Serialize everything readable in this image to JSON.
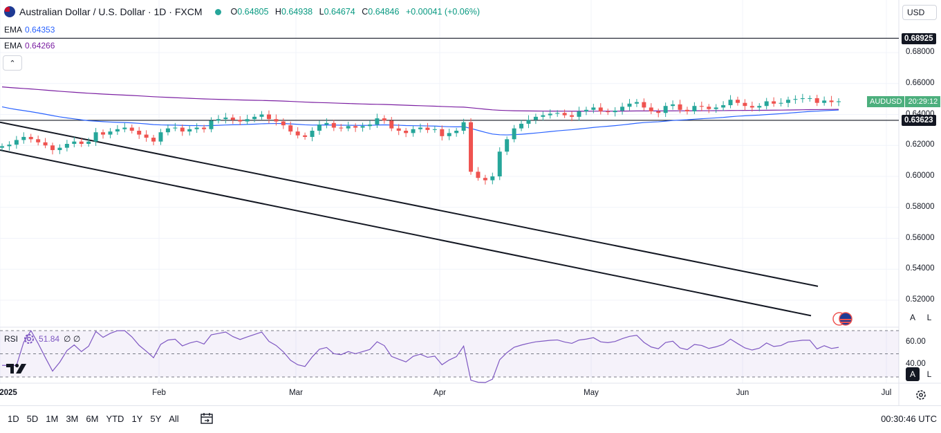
{
  "header": {
    "symbol": "Australian Dollar / U.S. Dollar · 1D · FXCM",
    "open_label": "O",
    "open": "0.64805",
    "high_label": "H",
    "high": "0.64938",
    "low_label": "L",
    "low": "0.64674",
    "close_label": "C",
    "close": "0.64846",
    "change": "+0.00041 (+0.06%)"
  },
  "indicators": [
    {
      "name": "EMA",
      "value": "0.64353",
      "color": "#2962ff"
    },
    {
      "name": "EMA",
      "value": "0.64266",
      "color": "#7b1fa2"
    }
  ],
  "currency_button": "USD",
  "price_axis": [
    "0.68000",
    "0.66000",
    "0.64000",
    "0.62000",
    "0.60000",
    "0.58000",
    "0.56000",
    "0.54000",
    "0.52000"
  ],
  "horizontal_lines": {
    "upper": "0.68925",
    "lower": "0.63623"
  },
  "current_price_tag": {
    "symbol": "AUDUSD",
    "countdown": "20:29:12"
  },
  "scale_buttons": {
    "auto": "A",
    "log": "L"
  },
  "rsi": {
    "label": "RSI",
    "value": "51.84",
    "extra": "∅ ∅",
    "axis": [
      "60.00",
      "40.00"
    ]
  },
  "time_axis": [
    "2025",
    "Feb",
    "Mar",
    "Apr",
    "May",
    "Jun",
    "Jul"
  ],
  "range_buttons": [
    "1D",
    "5D",
    "1M",
    "3M",
    "6M",
    "YTD",
    "1Y",
    "5Y",
    "All"
  ],
  "clock": "00:30:46 UTC",
  "colors": {
    "up": "#26a69a",
    "down": "#ef5350",
    "ema_fast": "#2962ff",
    "ema_slow": "#7b1fa2",
    "rsi": "#7e57c2"
  },
  "chart_data": {
    "type": "candlestick",
    "title": "Australian Dollar / U.S. Dollar · 1D · FXCM",
    "x_ticks": [
      "2025",
      "Feb",
      "Mar",
      "Apr",
      "May",
      "Jun",
      "Jul"
    ],
    "y_range": [
      0.51,
      0.69
    ],
    "series": [
      {
        "name": "AUDUSD",
        "closes": [
          0.6195,
          0.6205,
          0.6235,
          0.6255,
          0.624,
          0.622,
          0.62,
          0.617,
          0.6185,
          0.621,
          0.6225,
          0.621,
          0.6225,
          0.6285,
          0.627,
          0.629,
          0.6305,
          0.6315,
          0.6295,
          0.627,
          0.625,
          0.6225,
          0.6285,
          0.631,
          0.6315,
          0.629,
          0.6305,
          0.6315,
          0.6305,
          0.636,
          0.637,
          0.638,
          0.6365,
          0.6355,
          0.637,
          0.6385,
          0.64,
          0.637,
          0.6355,
          0.633,
          0.629,
          0.6265,
          0.6255,
          0.6295,
          0.6335,
          0.6345,
          0.6315,
          0.631,
          0.6325,
          0.6315,
          0.6325,
          0.6335,
          0.6375,
          0.636,
          0.631,
          0.6295,
          0.628,
          0.6305,
          0.6315,
          0.63,
          0.6305,
          0.626,
          0.628,
          0.6295,
          0.635,
          0.603,
          0.599,
          0.5975,
          0.6,
          0.616,
          0.624,
          0.631,
          0.634,
          0.6365,
          0.6385,
          0.6395,
          0.6405,
          0.641,
          0.6395,
          0.6385,
          0.642,
          0.643,
          0.6445,
          0.642,
          0.6415,
          0.6425,
          0.645,
          0.647,
          0.648,
          0.6445,
          0.642,
          0.641,
          0.6455,
          0.6465,
          0.643,
          0.642,
          0.6455,
          0.645,
          0.6435,
          0.6445,
          0.646,
          0.6495,
          0.6475,
          0.6455,
          0.6445,
          0.6455,
          0.6485,
          0.647,
          0.6475,
          0.6495,
          0.65,
          0.6505,
          0.6505,
          0.6475,
          0.649,
          0.648,
          0.6485
        ]
      },
      {
        "name": "EMA",
        "values_start": 0.646,
        "values_end": 0.6435
      },
      {
        "name": "EMA",
        "values_start": 0.6582,
        "values_end": 0.6427
      }
    ],
    "horizontal_levels": [
      0.68925,
      0.63623
    ],
    "trendlines": [
      {
        "from": [
          "2025",
          0.635
        ],
        "to": [
          "Jul",
          0.529
        ]
      },
      {
        "from": [
          "2025",
          0.617
        ],
        "to": [
          "Jul",
          0.51
        ]
      }
    ],
    "rsi": {
      "value": 51.84,
      "levels": [
        70,
        50,
        30
      ],
      "axis_ticks": [
        60,
        40
      ]
    }
  }
}
